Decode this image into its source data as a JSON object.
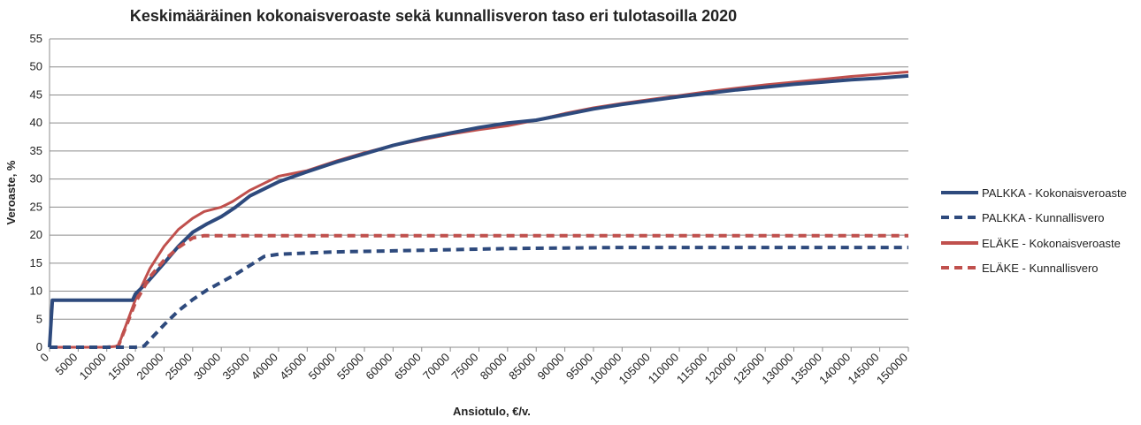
{
  "chart_data": {
    "type": "line",
    "title": "Keskimääräinen kokonaisveroaste sekä kunnallisveron taso eri tulotasoilla 2020",
    "xlabel": "Ansiotulo, €/v.",
    "ylabel": "Veroaste, %",
    "xlim": [
      0,
      150000
    ],
    "ylim": [
      0,
      55
    ],
    "x_ticks": [
      0,
      5000,
      10000,
      15000,
      20000,
      25000,
      30000,
      35000,
      40000,
      45000,
      50000,
      55000,
      60000,
      65000,
      70000,
      75000,
      80000,
      85000,
      90000,
      95000,
      100000,
      105000,
      110000,
      115000,
      120000,
      125000,
      130000,
      135000,
      140000,
      145000,
      150000
    ],
    "y_ticks": [
      0,
      5,
      10,
      15,
      20,
      25,
      30,
      35,
      40,
      45,
      50,
      55
    ],
    "grid": "horizontal",
    "legend_position": "right",
    "series": [
      {
        "name": "PALKKA - Kokonaisveroaste",
        "color": "#2e4a7d",
        "style": "solid",
        "x": [
          0,
          500,
          1000,
          5000,
          10000,
          14500,
          15000,
          17000,
          20000,
          22500,
          25000,
          27500,
          30000,
          32500,
          35000,
          40000,
          45000,
          50000,
          55000,
          60000,
          65000,
          70000,
          75000,
          80000,
          85000,
          90000,
          95000,
          100000,
          105000,
          110000,
          115000,
          120000,
          125000,
          130000,
          135000,
          140000,
          145000,
          150000
        ],
        "y": [
          0,
          8.4,
          8.4,
          8.4,
          8.4,
          8.4,
          9.5,
          11.5,
          15,
          18,
          20.5,
          22,
          23.3,
          25,
          27,
          29.5,
          31.3,
          33,
          34.5,
          36,
          37.2,
          38.2,
          39.2,
          40,
          40.5,
          41.5,
          42.5,
          43.3,
          44,
          44.7,
          45.3,
          45.9,
          46.4,
          46.9,
          47.3,
          47.7,
          48,
          48.4
        ]
      },
      {
        "name": "PALKKA - Kunnallisvero",
        "color": "#2e4a7d",
        "style": "dashed",
        "x": [
          0,
          15000,
          16500,
          20000,
          22500,
          25000,
          27500,
          30000,
          32500,
          35000,
          37500,
          40000,
          45000,
          50000,
          55000,
          60000,
          70000,
          80000,
          90000,
          100000,
          110000,
          120000,
          130000,
          140000,
          150000
        ],
        "y": [
          0,
          0,
          0.2,
          4,
          6.5,
          8.5,
          10.2,
          11.6,
          13,
          14.6,
          16.2,
          16.6,
          16.8,
          17,
          17.1,
          17.2,
          17.4,
          17.6,
          17.7,
          17.8,
          17.8,
          17.8,
          17.8,
          17.8,
          17.8
        ]
      },
      {
        "name": "ELÄKE - Kokonaisveroaste",
        "color": "#c0504d",
        "style": "solid",
        "x": [
          0,
          5000,
          10000,
          12000,
          15000,
          17500,
          20000,
          22500,
          25000,
          27000,
          30000,
          32000,
          35000,
          40000,
          45000,
          50000,
          55000,
          60000,
          65000,
          70000,
          75000,
          80000,
          85000,
          90000,
          95000,
          100000,
          105000,
          110000,
          115000,
          120000,
          125000,
          130000,
          135000,
          140000,
          145000,
          150000
        ],
        "y": [
          0,
          0,
          0,
          0.2,
          8.5,
          14,
          18,
          21,
          23,
          24.2,
          25,
          26,
          28,
          30.5,
          31.5,
          33.2,
          34.7,
          36,
          37,
          38,
          38.8,
          39.5,
          40.5,
          41.7,
          42.7,
          43.5,
          44.2,
          44.9,
          45.6,
          46.2,
          46.8,
          47.3,
          47.8,
          48.3,
          48.7,
          49.1
        ]
      },
      {
        "name": "ELÄKE - Kunnallisvero",
        "color": "#c0504d",
        "style": "dashed",
        "x": [
          0,
          5000,
          10000,
          12000,
          15000,
          17500,
          20000,
          22500,
          25000,
          27000,
          30000,
          40000,
          50000,
          60000,
          70000,
          80000,
          90000,
          100000,
          110000,
          120000,
          130000,
          140000,
          150000
        ],
        "y": [
          0,
          0,
          0,
          0.2,
          8,
          12.5,
          15.5,
          17.8,
          19.5,
          19.9,
          19.9,
          19.9,
          19.9,
          19.9,
          19.9,
          19.9,
          19.9,
          19.9,
          19.9,
          19.9,
          19.9,
          19.9,
          19.9
        ]
      }
    ]
  }
}
